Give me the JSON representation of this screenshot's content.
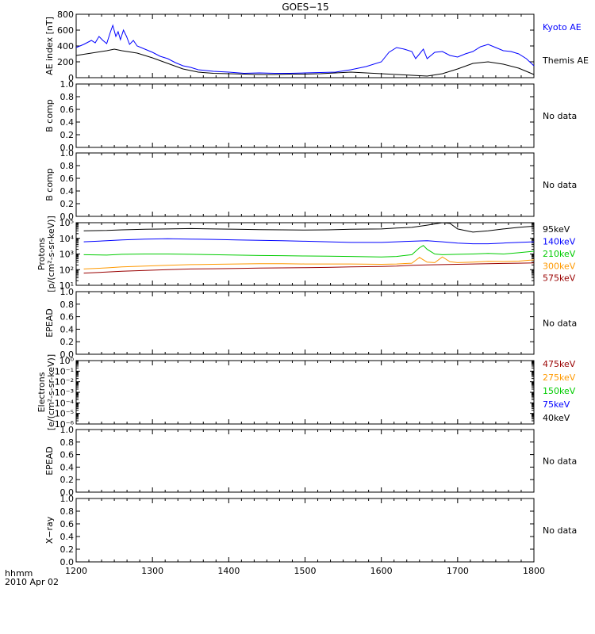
{
  "chart_data": {
    "type": "line",
    "title": "GOES−15",
    "time_label_line1": "hhmm",
    "time_label_line2": "2010 Apr 02",
    "xlim": [
      1200,
      1800
    ],
    "xticks": [
      "1200",
      "1300",
      "1400",
      "1500",
      "1600",
      "1700",
      "1800"
    ],
    "no_data_text": "No data",
    "panels": [
      {
        "id": "ae",
        "ylabel": "AE index [nT]",
        "ylim": [
          0,
          800
        ],
        "yticks": [
          "0",
          "200",
          "400",
          "600",
          "800"
        ],
        "series": [
          {
            "name": "Kyoto AE",
            "color": "#0000ff",
            "x": [
              1200,
              1210,
              1220,
              1225,
              1230,
              1235,
              1240,
              1245,
              1248,
              1252,
              1255,
              1258,
              1262,
              1266,
              1270,
              1275,
              1280,
              1290,
              1300,
              1310,
              1320,
              1330,
              1340,
              1350,
              1360,
              1380,
              1400,
              1420,
              1440,
              1460,
              1480,
              1500,
              1520,
              1540,
              1560,
              1580,
              1600,
              1610,
              1620,
              1630,
              1640,
              1645,
              1650,
              1655,
              1660,
              1670,
              1680,
              1690,
              1700,
              1710,
              1720,
              1730,
              1740,
              1750,
              1760,
              1770,
              1780,
              1790,
              1800
            ],
            "y": [
              380,
              420,
              470,
              440,
              520,
              470,
              430,
              580,
              660,
              520,
              580,
              480,
              600,
              520,
              420,
              470,
              400,
              360,
              320,
              270,
              240,
              190,
              150,
              130,
              100,
              80,
              70,
              55,
              60,
              55,
              55,
              60,
              65,
              70,
              100,
              140,
              200,
              320,
              380,
              360,
              330,
              240,
              300,
              360,
              240,
              320,
              330,
              280,
              260,
              300,
              330,
              390,
              420,
              380,
              340,
              330,
              300,
              240,
              150
            ]
          },
          {
            "name": "Themis AE",
            "color": "#000000",
            "x": [
              1200,
              1220,
              1240,
              1250,
              1260,
              1280,
              1300,
              1320,
              1340,
              1360,
              1380,
              1400,
              1420,
              1440,
              1460,
              1480,
              1500,
              1520,
              1540,
              1560,
              1580,
              1600,
              1620,
              1640,
              1660,
              1680,
              1700,
              1720,
              1740,
              1760,
              1780,
              1800
            ],
            "y": [
              280,
              310,
              340,
              360,
              340,
              310,
              250,
              180,
              110,
              70,
              55,
              50,
              45,
              40,
              40,
              45,
              45,
              50,
              60,
              70,
              60,
              50,
              40,
              30,
              20,
              50,
              110,
              180,
              200,
              170,
              120,
              40
            ]
          }
        ]
      },
      {
        "id": "b1",
        "ylabel": "B comp",
        "ylim": [
          0,
          1
        ],
        "yticks": [
          "0.0",
          "0.2",
          "0.4",
          "0.6",
          "0.8",
          "1.0"
        ],
        "note": "No data"
      },
      {
        "id": "b2",
        "ylabel": "B comp",
        "ylim": [
          0,
          1
        ],
        "yticks": [
          "0.0",
          "0.2",
          "0.4",
          "0.6",
          "0.8",
          "1.0"
        ],
        "note": "No data"
      },
      {
        "id": "protons",
        "ylabel_line1": "Protons",
        "ylabel_line2": "[p/(cm²-s-sr-keV)]",
        "scale": "log",
        "ylim": [
          10,
          100000
        ],
        "yticks": [
          "10¹",
          "10²",
          "10³",
          "10⁴",
          "10⁵"
        ],
        "series": [
          {
            "name": "575keV",
            "color": "#990000",
            "x": [
              1210,
              1240,
              1260,
              1290,
              1320,
              1350,
              1380,
              1410,
              1440,
              1470,
              1500,
              1530,
              1560,
              1600,
              1620,
              1640,
              1660,
              1680,
              1700,
              1720,
              1740,
              1760,
              1780,
              1800
            ],
            "y": [
              60,
              70,
              80,
              90,
              100,
              110,
              115,
              120,
              125,
              130,
              135,
              140,
              150,
              160,
              170,
              190,
              200,
              210,
              220,
              230,
              240,
              250,
              260,
              270
            ]
          },
          {
            "name": "300keV",
            "color": "#ff9900",
            "x": [
              1210,
              1240,
              1260,
              1290,
              1320,
              1350,
              1380,
              1410,
              1440,
              1470,
              1500,
              1530,
              1560,
              1600,
              1620,
              1640,
              1650,
              1660,
              1670,
              1680,
              1690,
              1700,
              1720,
              1740,
              1760,
              1780,
              1800
            ],
            "y": [
              110,
              130,
              150,
              170,
              190,
              210,
              220,
              230,
              240,
              240,
              230,
              230,
              230,
              220,
              230,
              260,
              600,
              300,
              280,
              650,
              320,
              280,
              300,
              340,
              330,
              350,
              420
            ]
          },
          {
            "name": "210keV",
            "color": "#00cc00",
            "x": [
              1210,
              1240,
              1260,
              1290,
              1320,
              1350,
              1380,
              1410,
              1440,
              1470,
              1500,
              1530,
              1560,
              1600,
              1620,
              1640,
              1650,
              1655,
              1660,
              1670,
              1680,
              1700,
              1720,
              1740,
              1760,
              1780,
              1800
            ],
            "y": [
              900,
              850,
              950,
              1000,
              1000,
              950,
              900,
              850,
              800,
              780,
              750,
              730,
              700,
              650,
              700,
              900,
              2500,
              3500,
              2000,
              1000,
              900,
              950,
              1000,
              1100,
              1000,
              1200,
              1500
            ]
          },
          {
            "name": "140keV",
            "color": "#0000ff",
            "x": [
              1210,
              1240,
              1260,
              1290,
              1320,
              1350,
              1380,
              1410,
              1440,
              1470,
              1500,
              1530,
              1560,
              1600,
              1620,
              1640,
              1660,
              1680,
              1700,
              1720,
              1740,
              1760,
              1780,
              1800
            ],
            "y": [
              6000,
              7000,
              8000,
              9000,
              9500,
              9000,
              8500,
              8000,
              7500,
              7000,
              6500,
              6000,
              5500,
              5500,
              6000,
              6500,
              7000,
              6000,
              5000,
              4500,
              4500,
              5000,
              5500,
              6000
            ]
          },
          {
            "name": "95keV",
            "color": "#000000",
            "x": [
              1210,
              1240,
              1260,
              1290,
              1320,
              1350,
              1380,
              1410,
              1440,
              1470,
              1500,
              1530,
              1560,
              1600,
              1620,
              1640,
              1660,
              1680,
              1690,
              1700,
              1720,
              1740,
              1760,
              1780,
              1800
            ],
            "y": [
              30000,
              32000,
              35000,
              38000,
              40000,
              42000,
              40000,
              38000,
              36000,
              35000,
              34000,
              35000,
              38000,
              40000,
              45000,
              50000,
              70000,
              100000,
              90000,
              40000,
              25000,
              30000,
              40000,
              50000,
              60000
            ]
          }
        ]
      },
      {
        "id": "epead1",
        "ylabel": "EPEAD",
        "ylim": [
          0,
          1
        ],
        "yticks": [
          "0.0",
          "0.2",
          "0.4",
          "0.6",
          "0.8",
          "1.0"
        ],
        "note": "No data"
      },
      {
        "id": "electrons",
        "ylabel_line1": "Electrons",
        "ylabel_line2": "[e/(cm²-s-sr-keV)]",
        "scale": "log",
        "ylim": [
          1e-06,
          1
        ],
        "yticks": [
          "10⁻⁶",
          "10⁻⁵",
          "10⁻⁴",
          "10⁻³",
          "10⁻²",
          "10⁻¹",
          "10⁰"
        ],
        "legend": [
          {
            "name": "475keV",
            "color": "#990000"
          },
          {
            "name": "275keV",
            "color": "#ff9900"
          },
          {
            "name": "150keV",
            "color": "#00cc00"
          },
          {
            "name": "75keV",
            "color": "#0000ff"
          },
          {
            "name": "40keV",
            "color": "#000000"
          }
        ]
      },
      {
        "id": "epead2",
        "ylabel": "EPEAD",
        "ylim": [
          0,
          1
        ],
        "yticks": [
          "0.0",
          "0.2",
          "0.4",
          "0.6",
          "0.8",
          "1.0"
        ],
        "note": "No data"
      },
      {
        "id": "xray",
        "ylabel": "X−ray",
        "ylim": [
          0,
          1
        ],
        "yticks": [
          "0.0",
          "0.2",
          "0.4",
          "0.6",
          "0.8",
          "1.0"
        ],
        "note": "No data"
      }
    ]
  }
}
